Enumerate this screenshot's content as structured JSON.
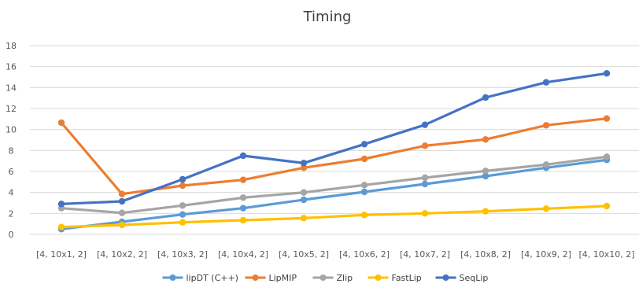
{
  "chart_data": {
    "type": "line",
    "title": "Timing",
    "xlabel": "",
    "ylabel": "",
    "ylim": [
      0,
      18
    ],
    "yticks": [
      0,
      2,
      4,
      6,
      8,
      10,
      12,
      14,
      16,
      18
    ],
    "grid": true,
    "legend_position": "bottom",
    "categories": [
      "[4, 10x1, 2]",
      "[4, 10x2,  2]",
      "[4, 10x3, 2]",
      "[4, 10x4, 2]",
      "[4, 10x5, 2]",
      "[4, 10x6, 2]",
      "[4, 10x7, 2]",
      "[4, 10x8, 2]",
      "[4, 10x9, 2]",
      "[4, 10x10, 2]"
    ],
    "series": [
      {
        "name": "lipDT (C++)",
        "color": "#5B9BD5",
        "values": [
          0.5,
          1.2,
          1.9,
          2.5,
          3.3,
          4.05,
          4.8,
          5.55,
          6.35,
          7.1
        ]
      },
      {
        "name": "LipMIP",
        "color": "#ED7D31",
        "values": [
          10.65,
          3.85,
          4.65,
          5.2,
          6.35,
          7.2,
          8.45,
          9.05,
          10.4,
          11.05
        ]
      },
      {
        "name": "Zlip",
        "color": "#A5A5A5",
        "values": [
          2.5,
          2.05,
          2.75,
          3.5,
          4.0,
          4.7,
          5.4,
          6.05,
          6.65,
          7.4
        ]
      },
      {
        "name": "FastLip",
        "color": "#FFC000",
        "values": [
          0.7,
          0.9,
          1.15,
          1.35,
          1.55,
          1.85,
          2.0,
          2.2,
          2.45,
          2.7
        ]
      },
      {
        "name": "SeqLip",
        "color": "#4472C4",
        "values": [
          2.9,
          3.15,
          5.25,
          7.5,
          6.8,
          8.6,
          10.45,
          13.05,
          14.5,
          15.35
        ]
      }
    ]
  }
}
